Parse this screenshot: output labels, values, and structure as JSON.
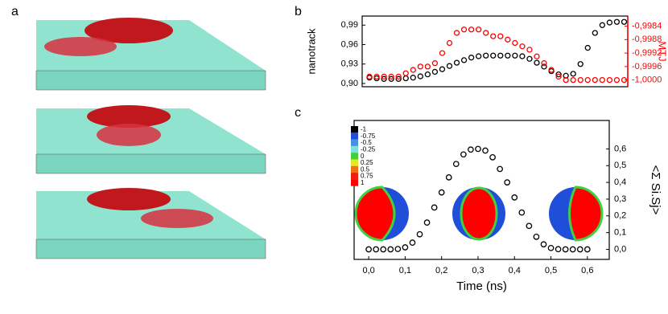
{
  "panel_labels": [
    "a",
    "b",
    "c"
  ],
  "chart_data": [
    {
      "type": "scatter",
      "xlim": [
        -0.02,
        0.71
      ],
      "x": [
        0,
        0.02,
        0.04,
        0.06,
        0.08,
        0.1,
        0.12,
        0.14,
        0.16,
        0.18,
        0.2,
        0.22,
        0.24,
        0.26,
        0.28,
        0.3,
        0.32,
        0.34,
        0.36,
        0.38,
        0.4,
        0.42,
        0.44,
        0.46,
        0.48,
        0.5,
        0.52,
        0.54,
        0.56,
        0.58,
        0.6,
        0.62,
        0.64,
        0.66,
        0.68,
        0.7
      ],
      "ylabel": "nanotrack",
      "y2label": "MTJ",
      "y2color": "#ff0000",
      "ylim": [
        0.895,
        1.004
      ],
      "yticks": [
        {
          "value": 0.9,
          "label": "0,90"
        },
        {
          "value": 0.93,
          "label": "0,93"
        },
        {
          "value": 0.96,
          "label": "0,96"
        },
        {
          "value": 0.99,
          "label": "0,99"
        }
      ],
      "y2lim": [
        -1.0002,
        -0.9981
      ],
      "y2ticks": [
        {
          "value": -1.0,
          "label": "-1,0000"
        },
        {
          "value": -0.9996,
          "label": "-0,9996"
        },
        {
          "value": -0.9992,
          "label": "-0,9992"
        },
        {
          "value": -0.9988,
          "label": "-0,9988"
        },
        {
          "value": -0.9984,
          "label": "-0,9984"
        }
      ],
      "series": [
        {
          "color": "#000000",
          "values": [
            0.909,
            0.908,
            0.907,
            0.907,
            0.907,
            0.908,
            0.909,
            0.911,
            0.914,
            0.918,
            0.922,
            0.927,
            0.932,
            0.936,
            0.94,
            0.942,
            0.943,
            0.943,
            0.943,
            0.943,
            0.943,
            0.942,
            0.938,
            0.932,
            0.926,
            0.919,
            0.914,
            0.912,
            0.915,
            0.93,
            0.955,
            0.978,
            0.99,
            0.994,
            0.995,
            0.995
          ]
        },
        {
          "color": "#ff0000",
          "axis": "y2",
          "values": [
            -0.9999,
            -0.9999,
            -0.9999,
            -0.9999,
            -0.9999,
            -0.9998,
            -0.9997,
            -0.9996,
            -0.9996,
            -0.9995,
            -0.9992,
            -0.9989,
            -0.9986,
            -0.9985,
            -0.9985,
            -0.9985,
            -0.9986,
            -0.9987,
            -0.9987,
            -0.9988,
            -0.9989,
            -0.999,
            -0.9991,
            -0.9993,
            -0.9995,
            -0.9997,
            -0.9999,
            -1.0,
            -1.0,
            -1.0,
            -1.0,
            -1.0,
            -1.0,
            -1.0,
            -1.0,
            -1.0
          ]
        }
      ]
    },
    {
      "type": "scatter",
      "xlabel": "Time (ns)",
      "ylabel": "<Σ Si.Sj>",
      "xlim": [
        -0.04,
        0.66
      ],
      "ylim": [
        -0.06,
        0.77
      ],
      "xticks": [
        {
          "value": 0,
          "label": "0,0"
        },
        {
          "value": 0.1,
          "label": "0,1"
        },
        {
          "value": 0.2,
          "label": "0,2"
        },
        {
          "value": 0.3,
          "label": "0,3"
        },
        {
          "value": 0.4,
          "label": "0,4"
        },
        {
          "value": 0.5,
          "label": "0,5"
        },
        {
          "value": 0.6,
          "label": "0,6"
        }
      ],
      "yticks": [
        {
          "value": 0,
          "label": "0,0"
        },
        {
          "value": 0.1,
          "label": "0,1"
        },
        {
          "value": 0.2,
          "label": "0,2"
        },
        {
          "value": 0.3,
          "label": "0,3"
        },
        {
          "value": 0.4,
          "label": "0,4"
        },
        {
          "value": 0.5,
          "label": "0,5"
        },
        {
          "value": 0.6,
          "label": "0,6"
        }
      ],
      "x": [
        0,
        0.02,
        0.04,
        0.06,
        0.08,
        0.1,
        0.12,
        0.14,
        0.16,
        0.18,
        0.2,
        0.22,
        0.24,
        0.26,
        0.28,
        0.3,
        0.32,
        0.34,
        0.36,
        0.38,
        0.4,
        0.42,
        0.44,
        0.46,
        0.48,
        0.5,
        0.52,
        0.54,
        0.56,
        0.58,
        0.6
      ],
      "series": [
        {
          "color": "#000000",
          "values": [
            0,
            0,
            0,
            0,
            0.002,
            0.012,
            0.04,
            0.09,
            0.16,
            0.25,
            0.34,
            0.43,
            0.51,
            0.567,
            0.596,
            0.6,
            0.59,
            0.55,
            0.48,
            0.4,
            0.31,
            0.22,
            0.14,
            0.075,
            0.03,
            0.008,
            0.001,
            0,
            0,
            0,
            0
          ]
        }
      ],
      "colorbar_ticks": [
        -1,
        -0.75,
        -0.5,
        -0.25,
        0,
        0.25,
        0.5,
        0.75,
        1
      ],
      "colorbar_colors": [
        "#000000",
        "#1f4fd8",
        "#4a90e0",
        "#80e0e0",
        "#40d040",
        "#e8e820",
        "#f07018",
        "#f02010",
        "#ff0000"
      ]
    }
  ]
}
